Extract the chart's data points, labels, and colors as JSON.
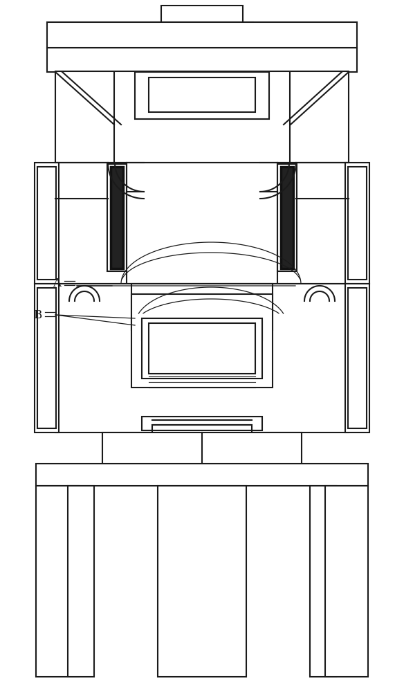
{
  "bg_color": "#ffffff",
  "lc": "#1a1a1a",
  "lw": 1.5,
  "lw2": 2.0,
  "figsize": [
    5.84,
    10.0
  ],
  "dpi": 100,
  "label_A": "A",
  "label_B": "B"
}
